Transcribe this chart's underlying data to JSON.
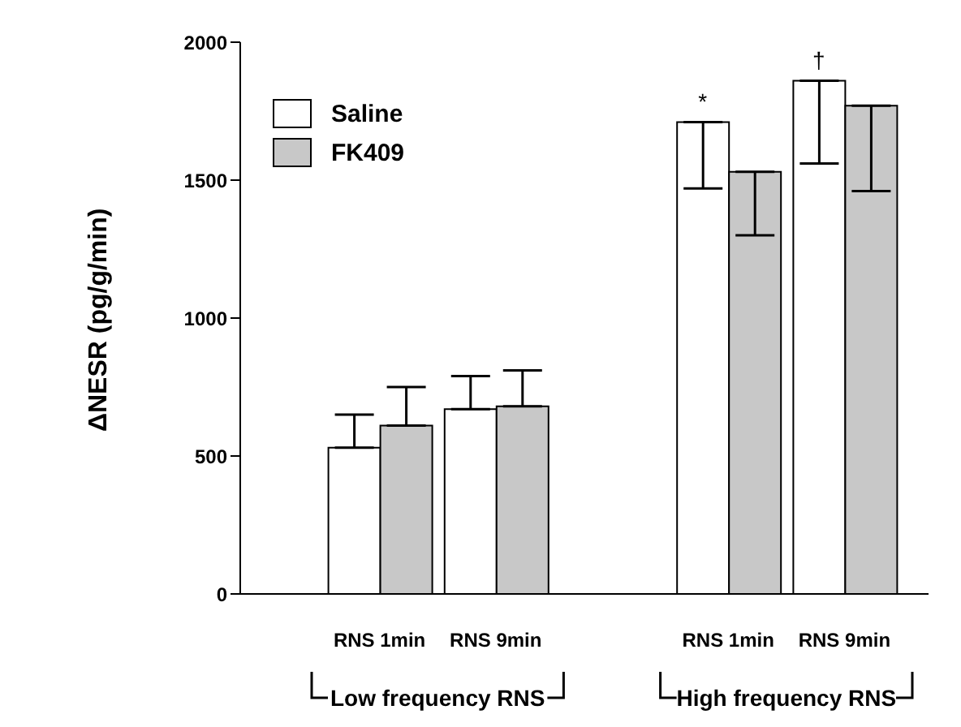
{
  "chart_data": {
    "type": "bar",
    "ylabel": "ΔNESR (pg/g/min)",
    "categories": [
      "RNS 1min",
      "RNS 9min",
      null,
      "RNS 1min",
      "RNS 9min"
    ],
    "series": [
      {
        "name": "Saline",
        "color": "#ffffff",
        "values": [
          530,
          670,
          null,
          1710,
          1860
        ],
        "errors": [
          [
            530,
            650
          ],
          [
            670,
            790
          ],
          null,
          [
            1470,
            1710
          ],
          [
            1560,
            1860
          ]
        ]
      },
      {
        "name": "FK409",
        "color": "#c8c8c8",
        "values": [
          610,
          680,
          null,
          1530,
          1770
        ],
        "errors": [
          [
            610,
            750
          ],
          [
            680,
            810
          ],
          null,
          [
            1300,
            1530
          ],
          [
            1460,
            1770
          ]
        ]
      }
    ],
    "ylim": [
      0,
      2000
    ],
    "yticks": [
      0,
      500,
      1000,
      1500,
      2000
    ],
    "grid": false,
    "legend": "top left",
    "annotations": [
      "*",
      "†",
      "Low frequency RNS",
      "High frequency RNS"
    ]
  }
}
